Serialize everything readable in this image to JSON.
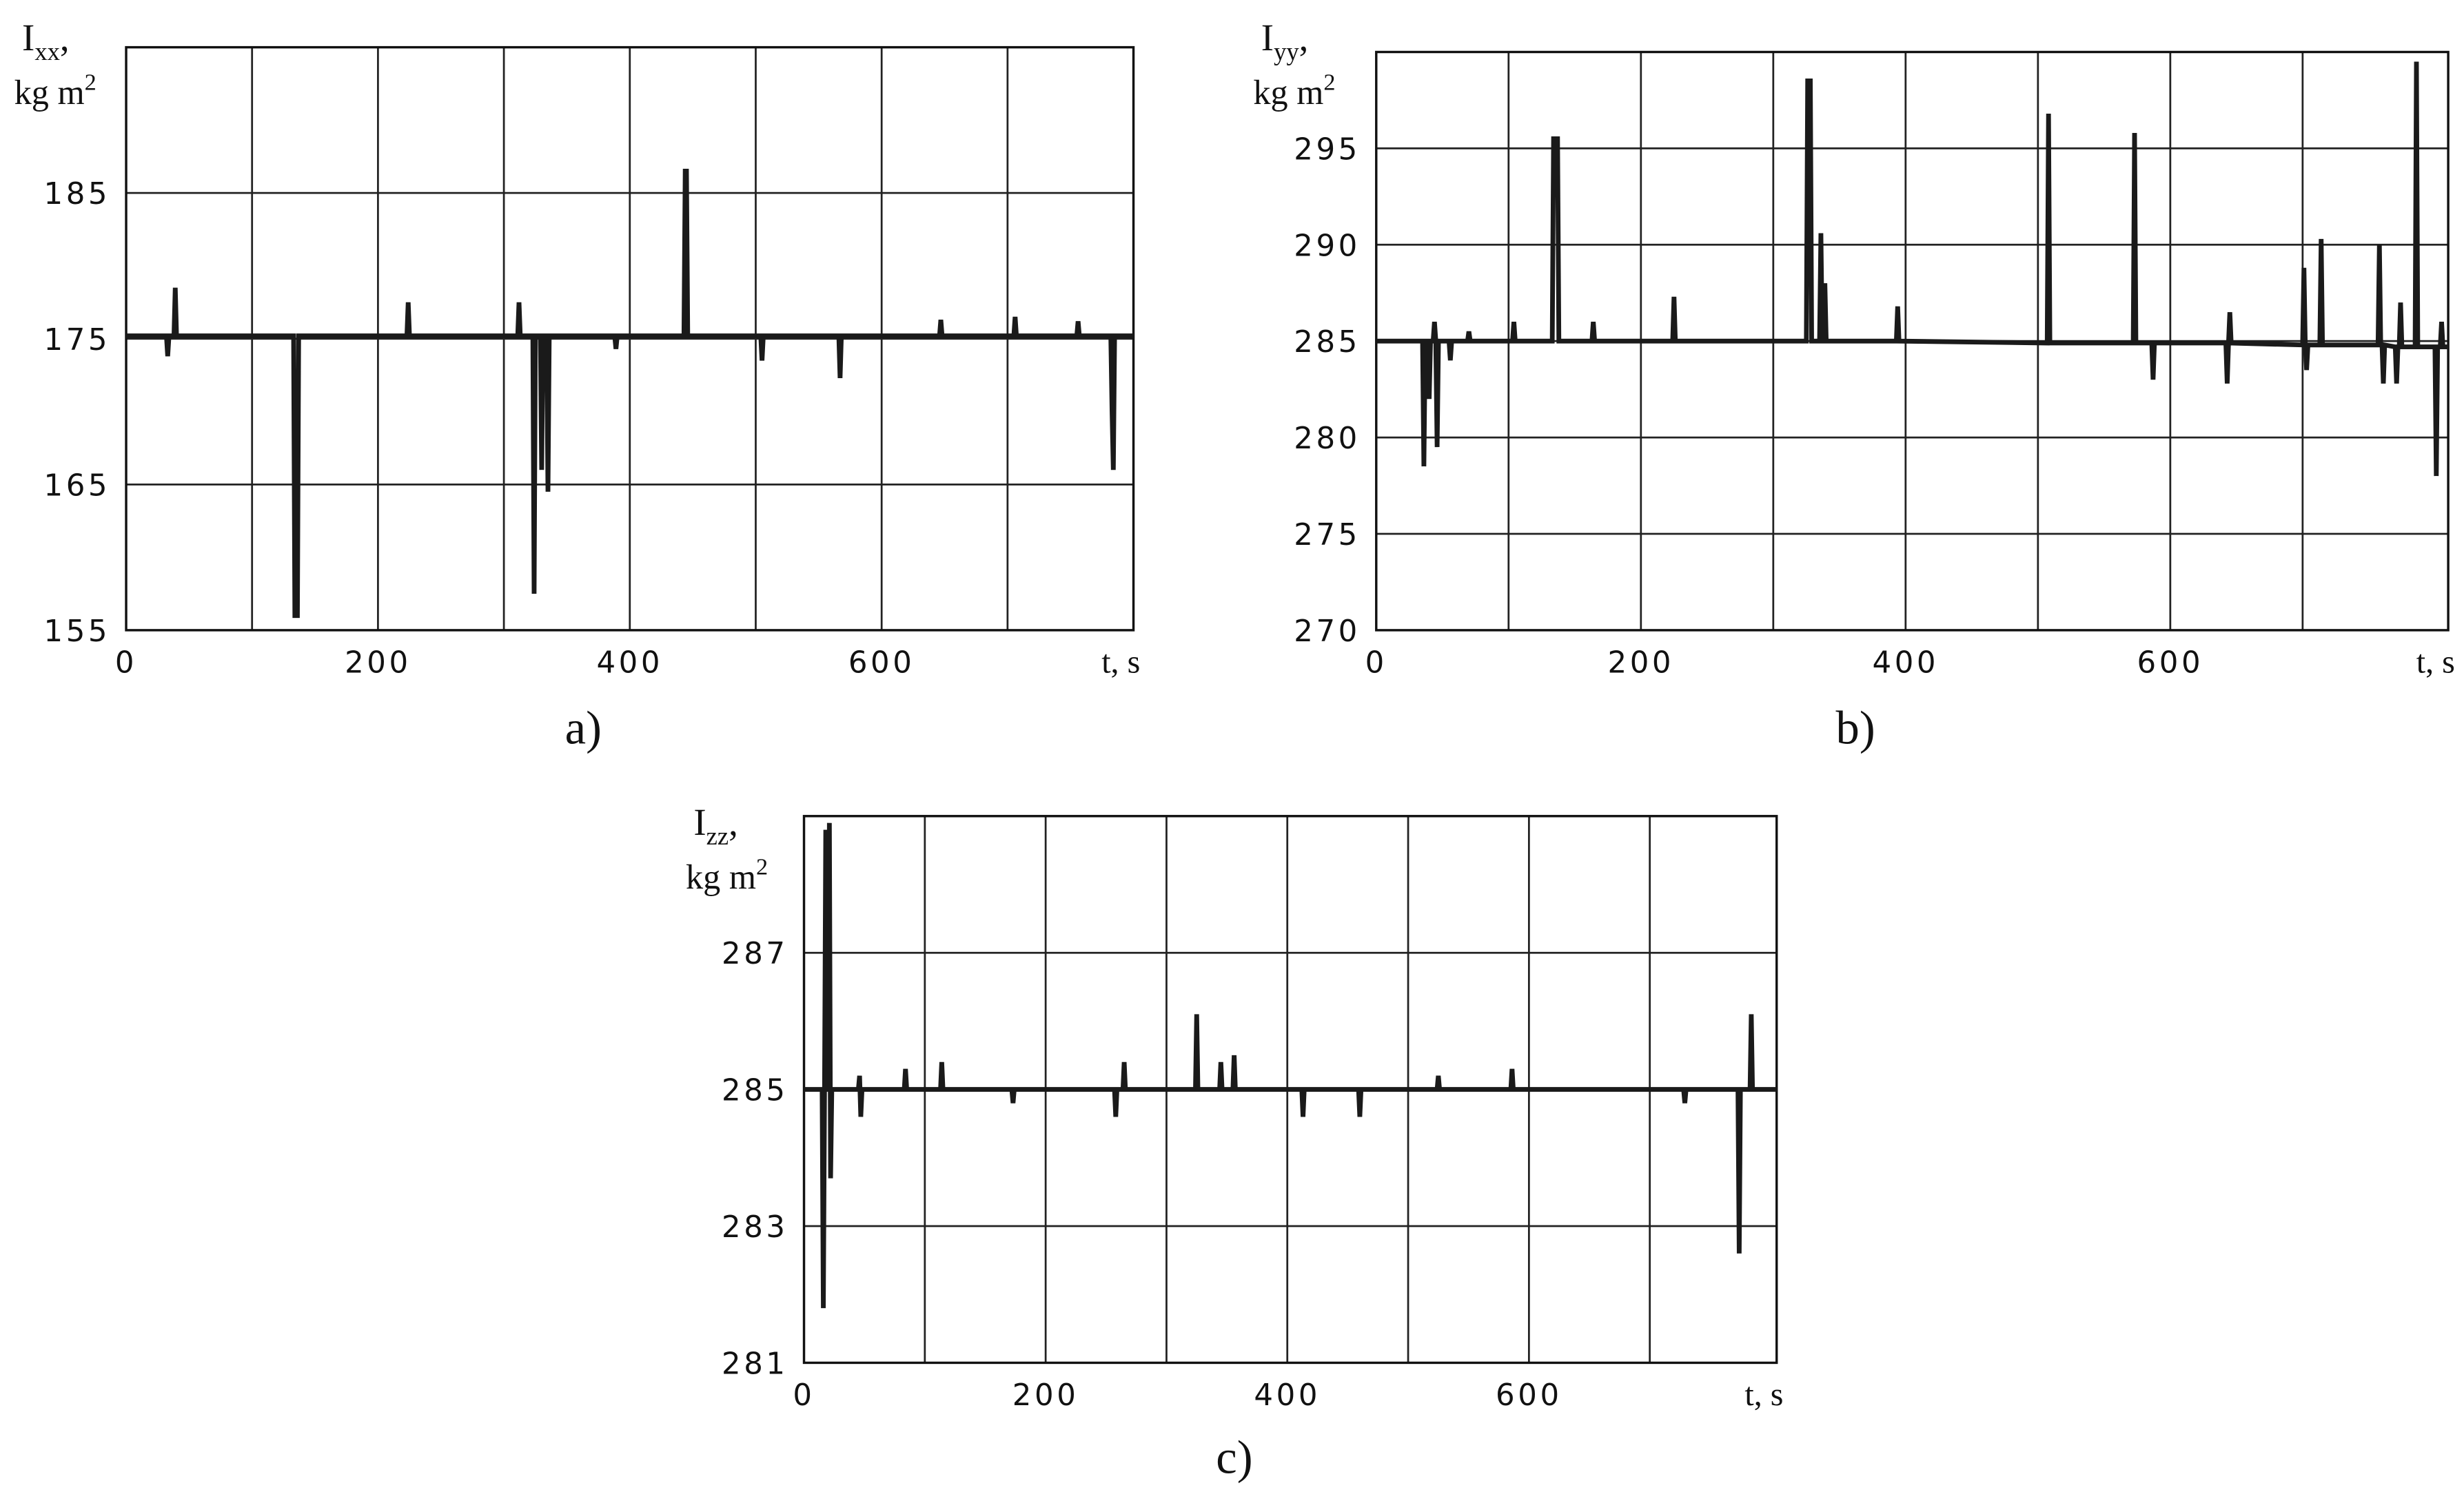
{
  "chart_data": [
    {
      "type": "line",
      "panel_label": "a)",
      "ylabel_symbol": "I",
      "ylabel_subscript": "xx",
      "ylabel_punct": ",",
      "ylabel_unit": "kg m",
      "ylabel_unit_power": "2",
      "xlabel": "t, s",
      "xlim": [
        0,
        800
      ],
      "ylim": [
        155,
        195
      ],
      "xticks": [
        0,
        200,
        400,
        600
      ],
      "xgrid": [
        100,
        200,
        300,
        400,
        500,
        600,
        700
      ],
      "yticks": [
        155,
        165,
        175,
        185
      ],
      "grid": true,
      "color": "#1a1a1a",
      "x": [
        0,
        32,
        33,
        34,
        38,
        39,
        40,
        133,
        134,
        136,
        137,
        223,
        224,
        225,
        311,
        312,
        313,
        323,
        324,
        325,
        329,
        330,
        331,
        334,
        335,
        336,
        388,
        389,
        390,
        443,
        444,
        445,
        446,
        504,
        505,
        506,
        566,
        567,
        568,
        646,
        647,
        648,
        705,
        706,
        707,
        755,
        756,
        757,
        782,
        783,
        784,
        785,
        800
      ],
      "values": [
        175.2,
        175.2,
        173.8,
        175.2,
        175.2,
        178.5,
        175.2,
        175.2,
        156,
        156,
        175.2,
        175.2,
        177.5,
        175.2,
        175.2,
        177.5,
        175.2,
        175.2,
        157.5,
        175.2,
        175.2,
        166,
        175.2,
        175.2,
        164.5,
        175.2,
        175.2,
        174.3,
        175.2,
        175.2,
        186.5,
        186.5,
        175.2,
        175.2,
        173.5,
        175.2,
        175.2,
        172.3,
        175.2,
        175.2,
        176.3,
        175.2,
        175.2,
        176.5,
        175.2,
        175.2,
        176.2,
        175.2,
        175.2,
        170,
        166,
        175.2,
        175.2
      ]
    },
    {
      "type": "line",
      "panel_label": "b)",
      "ylabel_symbol": "I",
      "ylabel_subscript": "yy",
      "ylabel_punct": ",",
      "ylabel_unit": "kg m",
      "ylabel_unit_power": "2",
      "xlabel": "t, s",
      "xlim": [
        0,
        810
      ],
      "ylim": [
        270,
        300
      ],
      "xticks": [
        0,
        200,
        400,
        600
      ],
      "xgrid": [
        100,
        200,
        300,
        400,
        500,
        600,
        700
      ],
      "yticks": [
        270,
        275,
        280,
        285,
        290,
        295
      ],
      "grid": true,
      "color": "#1a1a1a",
      "x": [
        0,
        35,
        36,
        37,
        39,
        40,
        41,
        43,
        44,
        45,
        46,
        47,
        55,
        56,
        57,
        69,
        70,
        71,
        103,
        104,
        105,
        133,
        134,
        137,
        138,
        163,
        164,
        165,
        224,
        225,
        226,
        325,
        326,
        328,
        329,
        335,
        336,
        337,
        338,
        339,
        340,
        393,
        394,
        395,
        507,
        508,
        509,
        572,
        573,
        574,
        586,
        587,
        588,
        642,
        643,
        644,
        645,
        646,
        700,
        701,
        702,
        703,
        704,
        713,
        714,
        715,
        757,
        758,
        759,
        760,
        761,
        762,
        770,
        771,
        772,
        773,
        774,
        775,
        785,
        786,
        787,
        800,
        801,
        802,
        804,
        805,
        806,
        810
      ],
      "values": [
        285,
        285,
        278.5,
        285,
        285,
        282,
        285,
        285,
        286,
        285,
        279.5,
        285,
        285,
        284,
        285,
        285,
        285.5,
        285,
        285,
        286,
        285,
        285,
        295.5,
        295.5,
        285,
        285,
        286,
        285,
        285,
        287.3,
        285,
        285,
        298.5,
        298.5,
        285,
        285,
        290.6,
        285,
        285,
        288,
        285,
        285,
        286.8,
        285,
        284.9,
        296.8,
        284.9,
        284.9,
        295.8,
        284.9,
        284.9,
        283,
        284.9,
        284.9,
        282.8,
        284.9,
        286.5,
        284.9,
        284.8,
        288.8,
        284.8,
        283.5,
        284.8,
        284.8,
        290.3,
        284.8,
        284.8,
        290,
        284.8,
        284.8,
        282.8,
        284.8,
        284.7,
        282.8,
        284.7,
        284.7,
        287,
        284.7,
        284.7,
        299.5,
        284.7,
        284.7,
        278,
        284.7,
        284.7,
        286,
        284.7,
        284.7
      ]
    },
    {
      "type": "line",
      "panel_label": "c)",
      "ylabel_symbol": "I",
      "ylabel_subscript": "zz",
      "ylabel_punct": ",",
      "ylabel_unit": "kg m",
      "ylabel_unit_power": "2",
      "xlabel": "t, s",
      "xlim": [
        0,
        805
      ],
      "ylim": [
        281,
        289
      ],
      "xticks": [
        0,
        200,
        400,
        600
      ],
      "xgrid": [
        100,
        200,
        300,
        400,
        500,
        600,
        700
      ],
      "yticks": [
        281,
        283,
        285,
        287
      ],
      "grid": true,
      "color": "#1a1a1a",
      "x": [
        0,
        15,
        16,
        17,
        18,
        19,
        20,
        21,
        22,
        23,
        45,
        46,
        47,
        48,
        83,
        84,
        85,
        113,
        114,
        115,
        172,
        173,
        174,
        257,
        258,
        259,
        264,
        265,
        266,
        324,
        325,
        326,
        344,
        345,
        346,
        355,
        356,
        357,
        412,
        413,
        414,
        459,
        460,
        461,
        524,
        525,
        526,
        585,
        586,
        587,
        728,
        729,
        730,
        773,
        774,
        775,
        783,
        784,
        785,
        805
      ],
      "values": [
        285,
        285,
        281.8,
        285,
        288.8,
        285,
        285,
        288.9,
        283.7,
        285,
        285,
        285.2,
        284.6,
        285,
        285,
        285.3,
        285,
        285,
        285.4,
        285,
        285,
        284.8,
        285,
        285,
        284.6,
        285,
        285,
        285.4,
        285,
        285,
        286.1,
        285,
        285,
        285.4,
        285,
        285,
        285.5,
        285,
        285,
        284.6,
        285,
        285,
        284.6,
        285,
        285,
        285.2,
        285,
        285,
        285.3,
        285,
        285,
        284.8,
        285,
        285,
        282.6,
        285,
        285,
        286.1,
        285,
        285
      ]
    }
  ]
}
